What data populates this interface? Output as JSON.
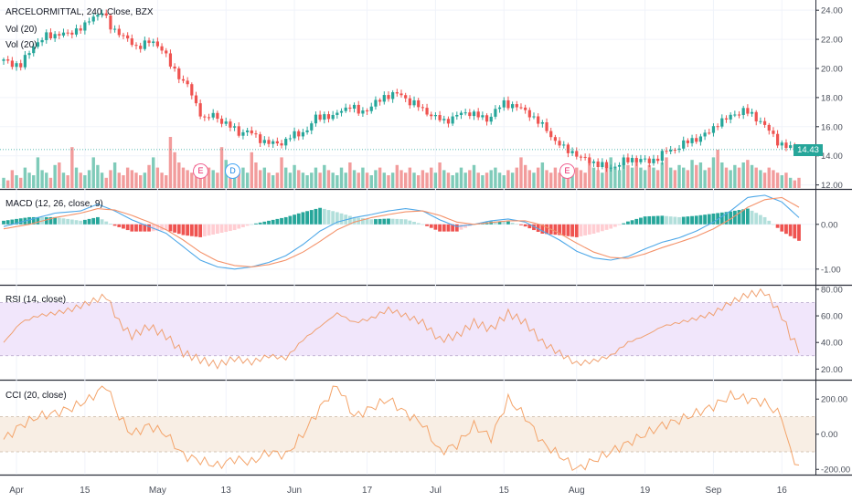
{
  "header": {
    "symbol_line": "ARCELORMITTAL, 240, Close, BZX",
    "vol_label_1": "Vol (20)",
    "vol_label_2": "Vol (20)"
  },
  "panels": {
    "macd_label": "MACD (12, 26, close, 9)",
    "rsi_label": "RSI (14, close)",
    "cci_label": "CCI (20, close)"
  },
  "price_tag": "14.43",
  "events": [
    {
      "letter": "E",
      "kind": "earnings"
    },
    {
      "letter": "D",
      "kind": "dividend"
    },
    {
      "letter": "E",
      "kind": "earnings"
    }
  ],
  "colors": {
    "up": "#26a69a",
    "down": "#ef5350",
    "vol_up": "#7fcbb9",
    "vol_down": "#f29c9c",
    "macd_line": "#4fa8e8",
    "signal_line": "#f4926a",
    "rsi": "#f0a070",
    "rsi_band": "#f1e6fb",
    "cci": "#f4a46a",
    "cci_band": "#f8eee4"
  },
  "chart_data": [
    {
      "type": "candlestick",
      "title": "ARCELORMITTAL, 240, Close, BZX",
      "x_ticks": [
        "Apr",
        "15",
        "May",
        "13",
        "Jun",
        "17",
        "Jul",
        "15",
        "Aug",
        "19",
        "Sep",
        "16"
      ],
      "y_ticks": [
        12.0,
        14.0,
        16.0,
        18.0,
        20.0,
        22.0,
        24.0
      ],
      "ylim": [
        11.85,
        24.45
      ],
      "last_price": 14.43,
      "close_path": [
        [
          0,
          20.5
        ],
        [
          4,
          20.2
        ],
        [
          7,
          21.6
        ],
        [
          10,
          22.2
        ],
        [
          13,
          22.4
        ],
        [
          15,
          22.3
        ],
        [
          17,
          22.7
        ],
        [
          19,
          22.9
        ],
        [
          21,
          23.6
        ],
        [
          23,
          23.9
        ],
        [
          25,
          22.8
        ],
        [
          27,
          22.5
        ],
        [
          29,
          21.9
        ],
        [
          31,
          21.5
        ],
        [
          33,
          21.7
        ],
        [
          35,
          21.8
        ],
        [
          37,
          21.4
        ],
        [
          39,
          20.2
        ],
        [
          41,
          19.5
        ],
        [
          43,
          18.8
        ],
        [
          45,
          17.5
        ],
        [
          47,
          16.5
        ],
        [
          49,
          16.8
        ],
        [
          51,
          16.4
        ],
        [
          53,
          16.0
        ],
        [
          55,
          15.6
        ],
        [
          57,
          15.7
        ],
        [
          59,
          15.3
        ],
        [
          61,
          15.0
        ],
        [
          63,
          14.8
        ],
        [
          65,
          14.9
        ],
        [
          67,
          15.3
        ],
        [
          69,
          15.5
        ],
        [
          71,
          15.8
        ],
        [
          73,
          16.6
        ],
        [
          75,
          16.8
        ],
        [
          77,
          16.6
        ],
        [
          79,
          17.2
        ],
        [
          81,
          17.4
        ],
        [
          83,
          17.0
        ],
        [
          85,
          17.2
        ],
        [
          87,
          17.6
        ],
        [
          89,
          18.1
        ],
        [
          91,
          18.2
        ],
        [
          93,
          18.2
        ],
        [
          95,
          17.7
        ],
        [
          97,
          17.4
        ],
        [
          99,
          17.0
        ],
        [
          101,
          16.6
        ],
        [
          103,
          16.4
        ],
        [
          105,
          16.6
        ],
        [
          107,
          16.9
        ],
        [
          109,
          17.0
        ],
        [
          111,
          16.7
        ],
        [
          113,
          16.5
        ],
        [
          115,
          17.1
        ],
        [
          117,
          17.6
        ],
        [
          119,
          17.5
        ],
        [
          121,
          17.2
        ],
        [
          123,
          16.9
        ],
        [
          125,
          16.3
        ],
        [
          127,
          15.8
        ],
        [
          129,
          15.0
        ],
        [
          131,
          14.5
        ],
        [
          133,
          14.3
        ],
        [
          135,
          13.8
        ],
        [
          137,
          13.7
        ],
        [
          139,
          13.4
        ],
        [
          141,
          13.2
        ],
        [
          143,
          13.3
        ],
        [
          145,
          13.6
        ],
        [
          147,
          13.8
        ],
        [
          149,
          13.7
        ],
        [
          151,
          13.6
        ],
        [
          153,
          13.9
        ],
        [
          155,
          14.3
        ],
        [
          157,
          14.5
        ],
        [
          159,
          14.8
        ],
        [
          161,
          15.1
        ],
        [
          163,
          15.3
        ],
        [
          165,
          15.6
        ],
        [
          167,
          16.3
        ],
        [
          169,
          16.5
        ],
        [
          171,
          16.9
        ],
        [
          173,
          17.1
        ],
        [
          175,
          16.8
        ],
        [
          177,
          16.4
        ],
        [
          179,
          15.7
        ],
        [
          181,
          15.0
        ],
        [
          183,
          14.6
        ],
        [
          186,
          14.43
        ]
      ]
    },
    {
      "type": "bar",
      "title": "Vol (20)",
      "ylim": [
        0,
        1
      ],
      "volume_relative": [
        0.2,
        0.15,
        0.35,
        0.25,
        0.2,
        0.4,
        0.3,
        0.25,
        0.6,
        0.35,
        0.3,
        0.2,
        0.45,
        0.5,
        0.3,
        0.25,
        0.8,
        0.4,
        0.3,
        0.25,
        0.35,
        0.6,
        0.45,
        0.3,
        0.2,
        0.35,
        0.5,
        0.3,
        0.25,
        0.4,
        0.35,
        0.3,
        0.25,
        0.3,
        0.45,
        0.6,
        0.4,
        0.3,
        0.25,
        1.0,
        0.7,
        0.5,
        0.4,
        0.35,
        0.3,
        0.45,
        0.3,
        0.25,
        0.4,
        0.35,
        0.3,
        0.8,
        0.55,
        0.3,
        0.25,
        0.35,
        0.4,
        0.3,
        0.7,
        0.5,
        0.35,
        0.4,
        0.3,
        0.25,
        0.3,
        0.6,
        0.4,
        0.3,
        0.45,
        0.35,
        0.3,
        0.25,
        0.3,
        0.4,
        0.3,
        0.45,
        0.35,
        0.3,
        0.25,
        0.4,
        0.3,
        0.5,
        0.35,
        0.3,
        0.4,
        0.3,
        0.25,
        0.35,
        0.4,
        0.3,
        0.25,
        0.3,
        0.45,
        0.35,
        0.3,
        0.4,
        0.3,
        0.25,
        0.35,
        0.3,
        0.4,
        0.3,
        0.5,
        0.35,
        0.3,
        0.25,
        0.3,
        0.4,
        0.3,
        0.35,
        0.45,
        0.3,
        0.25,
        0.3,
        0.35,
        0.4,
        0.3,
        0.25,
        0.35,
        0.3,
        0.4,
        0.6,
        0.45,
        0.35,
        0.3,
        0.4,
        0.5,
        0.35,
        0.3,
        0.4,
        0.3,
        0.35,
        0.45,
        0.3,
        0.4,
        0.35,
        0.3,
        0.5,
        0.4,
        0.35,
        0.3,
        0.45,
        0.6,
        0.4,
        0.35,
        0.5,
        0.45,
        0.4,
        0.55,
        0.4,
        0.35,
        0.45,
        0.4,
        0.35,
        0.5,
        0.6,
        0.4,
        0.35,
        0.45,
        0.4,
        0.35,
        0.55,
        0.45,
        0.5,
        0.35,
        0.4,
        0.6,
        0.75,
        0.5,
        0.4,
        0.35,
        0.45,
        0.4,
        0.5,
        0.55,
        0.45,
        0.4,
        0.35,
        0.3,
        0.4,
        0.35,
        0.3,
        0.25,
        0.3,
        0.2,
        0.15
      ]
    },
    {
      "type": "line",
      "title": "MACD (12, 26, close, 9)",
      "y_ticks": [
        -1.0,
        0.0
      ],
      "ylim": [
        -1.35,
        0.75
      ],
      "macd_path": [
        [
          0,
          -0.05
        ],
        [
          6,
          0.1
        ],
        [
          12,
          0.25
        ],
        [
          18,
          0.3
        ],
        [
          22,
          0.45
        ],
        [
          26,
          0.3
        ],
        [
          30,
          0.1
        ],
        [
          34,
          -0.05
        ],
        [
          38,
          -0.2
        ],
        [
          42,
          -0.5
        ],
        [
          46,
          -0.8
        ],
        [
          50,
          -0.95
        ],
        [
          54,
          -1.0
        ],
        [
          58,
          -0.95
        ],
        [
          62,
          -0.85
        ],
        [
          66,
          -0.7
        ],
        [
          70,
          -0.45
        ],
        [
          74,
          -0.15
        ],
        [
          78,
          0.05
        ],
        [
          82,
          0.15
        ],
        [
          86,
          0.22
        ],
        [
          90,
          0.3
        ],
        [
          94,
          0.35
        ],
        [
          98,
          0.3
        ],
        [
          102,
          0.1
        ],
        [
          106,
          -0.05
        ],
        [
          110,
          0.0
        ],
        [
          114,
          0.08
        ],
        [
          118,
          0.12
        ],
        [
          122,
          0.05
        ],
        [
          126,
          -0.15
        ],
        [
          130,
          -0.35
        ],
        [
          134,
          -0.6
        ],
        [
          138,
          -0.75
        ],
        [
          142,
          -0.8
        ],
        [
          146,
          -0.72
        ],
        [
          150,
          -0.55
        ],
        [
          154,
          -0.4
        ],
        [
          158,
          -0.3
        ],
        [
          162,
          -0.15
        ],
        [
          166,
          0.05
        ],
        [
          170,
          0.3
        ],
        [
          174,
          0.6
        ],
        [
          178,
          0.65
        ],
        [
          182,
          0.5
        ],
        [
          186,
          0.15
        ]
      ],
      "signal_path": [
        [
          0,
          -0.1
        ],
        [
          6,
          0.0
        ],
        [
          12,
          0.15
        ],
        [
          18,
          0.25
        ],
        [
          22,
          0.35
        ],
        [
          26,
          0.32
        ],
        [
          30,
          0.2
        ],
        [
          34,
          0.05
        ],
        [
          38,
          -0.12
        ],
        [
          42,
          -0.35
        ],
        [
          46,
          -0.62
        ],
        [
          50,
          -0.82
        ],
        [
          54,
          -0.92
        ],
        [
          58,
          -0.95
        ],
        [
          62,
          -0.9
        ],
        [
          66,
          -0.8
        ],
        [
          70,
          -0.62
        ],
        [
          74,
          -0.38
        ],
        [
          78,
          -0.12
        ],
        [
          82,
          0.05
        ],
        [
          86,
          0.15
        ],
        [
          90,
          0.22
        ],
        [
          94,
          0.28
        ],
        [
          98,
          0.3
        ],
        [
          102,
          0.2
        ],
        [
          106,
          0.05
        ],
        [
          110,
          0.0
        ],
        [
          114,
          0.04
        ],
        [
          118,
          0.08
        ],
        [
          122,
          0.08
        ],
        [
          126,
          -0.02
        ],
        [
          130,
          -0.2
        ],
        [
          134,
          -0.42
        ],
        [
          138,
          -0.62
        ],
        [
          142,
          -0.74
        ],
        [
          146,
          -0.76
        ],
        [
          150,
          -0.66
        ],
        [
          154,
          -0.52
        ],
        [
          158,
          -0.4
        ],
        [
          162,
          -0.27
        ],
        [
          166,
          -0.1
        ],
        [
          170,
          0.12
        ],
        [
          174,
          0.38
        ],
        [
          178,
          0.55
        ],
        [
          182,
          0.6
        ],
        [
          186,
          0.38
        ]
      ]
    },
    {
      "type": "line",
      "title": "RSI (14, close)",
      "y_ticks": [
        20.0,
        40.0,
        60.0,
        80.0
      ],
      "ylim": [
        12,
        82
      ],
      "band": [
        30,
        70
      ],
      "rsi_path": [
        [
          0,
          40
        ],
        [
          4,
          55
        ],
        [
          8,
          60
        ],
        [
          12,
          62
        ],
        [
          16,
          65
        ],
        [
          20,
          70
        ],
        [
          24,
          75
        ],
        [
          27,
          55
        ],
        [
          30,
          45
        ],
        [
          34,
          52
        ],
        [
          38,
          45
        ],
        [
          42,
          32
        ],
        [
          46,
          27
        ],
        [
          50,
          23
        ],
        [
          54,
          28
        ],
        [
          58,
          25
        ],
        [
          62,
          30
        ],
        [
          66,
          28
        ],
        [
          70,
          42
        ],
        [
          74,
          52
        ],
        [
          78,
          62
        ],
        [
          82,
          55
        ],
        [
          86,
          58
        ],
        [
          90,
          65
        ],
        [
          94,
          60
        ],
        [
          98,
          55
        ],
        [
          102,
          42
        ],
        [
          106,
          45
        ],
        [
          110,
          55
        ],
        [
          114,
          50
        ],
        [
          118,
          62
        ],
        [
          122,
          55
        ],
        [
          126,
          40
        ],
        [
          130,
          32
        ],
        [
          134,
          24
        ],
        [
          138,
          26
        ],
        [
          142,
          30
        ],
        [
          146,
          40
        ],
        [
          150,
          45
        ],
        [
          154,
          52
        ],
        [
          158,
          55
        ],
        [
          162,
          58
        ],
        [
          166,
          62
        ],
        [
          170,
          70
        ],
        [
          174,
          76
        ],
        [
          178,
          78
        ],
        [
          182,
          60
        ],
        [
          184,
          45
        ],
        [
          186,
          35
        ]
      ]
    },
    {
      "type": "line",
      "title": "CCI (20, close)",
      "y_ticks": [
        -200.0,
        0.0,
        200.0
      ],
      "ylim": [
        -230,
        300
      ],
      "band": [
        -100,
        100
      ],
      "cci_path": [
        [
          0,
          -30
        ],
        [
          4,
          50
        ],
        [
          8,
          100
        ],
        [
          12,
          120
        ],
        [
          16,
          150
        ],
        [
          20,
          200
        ],
        [
          24,
          280
        ],
        [
          27,
          100
        ],
        [
          30,
          0
        ],
        [
          34,
          50
        ],
        [
          38,
          0
        ],
        [
          42,
          -120
        ],
        [
          46,
          -150
        ],
        [
          50,
          -180
        ],
        [
          54,
          -140
        ],
        [
          58,
          -160
        ],
        [
          62,
          -100
        ],
        [
          66,
          -120
        ],
        [
          70,
          0
        ],
        [
          74,
          150
        ],
        [
          78,
          280
        ],
        [
          82,
          100
        ],
        [
          86,
          150
        ],
        [
          90,
          200
        ],
        [
          94,
          120
        ],
        [
          98,
          60
        ],
        [
          102,
          -100
        ],
        [
          106,
          -60
        ],
        [
          110,
          50
        ],
        [
          114,
          -20
        ],
        [
          118,
          200
        ],
        [
          122,
          100
        ],
        [
          126,
          -50
        ],
        [
          130,
          -120
        ],
        [
          134,
          -200
        ],
        [
          138,
          -150
        ],
        [
          142,
          -100
        ],
        [
          146,
          -50
        ],
        [
          150,
          0
        ],
        [
          154,
          50
        ],
        [
          158,
          80
        ],
        [
          162,
          120
        ],
        [
          166,
          160
        ],
        [
          170,
          220
        ],
        [
          174,
          200
        ],
        [
          178,
          180
        ],
        [
          182,
          100
        ],
        [
          184,
          -100
        ],
        [
          186,
          -190
        ]
      ]
    }
  ]
}
